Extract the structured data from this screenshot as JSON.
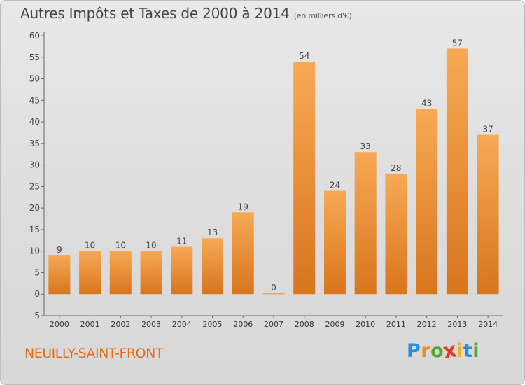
{
  "header": {
    "title": "Autres Impôts et Taxes de 2000 à 2014",
    "unit": "(en milliers d'€)"
  },
  "footer": {
    "commune": "NEUILLY-SAINT-FRONT",
    "logo_letters": [
      "P",
      "r",
      "o",
      "x",
      "i",
      "t",
      "i"
    ]
  },
  "colors": {
    "bar_light": "#f7a955",
    "bar_dark": "#d8751d",
    "commune_text": "#e46d1a",
    "logo_letters": [
      "#2f8dd6",
      "#f08a1c",
      "#58a531",
      "#e33c2e",
      "#f0b31c",
      "#2f8dd6",
      "#58a531"
    ]
  },
  "chart_data": {
    "type": "bar",
    "title": "Autres Impôts et Taxes de 2000 à 2014",
    "subtitle": "(en milliers d'€)",
    "xlabel": "",
    "ylabel": "",
    "categories": [
      "2000",
      "2001",
      "2002",
      "2003",
      "2004",
      "2005",
      "2006",
      "2007",
      "2008",
      "2009",
      "2010",
      "2011",
      "2012",
      "2013",
      "2014"
    ],
    "values": [
      9,
      10,
      10,
      10,
      11,
      13,
      19,
      0,
      54,
      24,
      33,
      28,
      43,
      57,
      37
    ],
    "ylim": [
      -5,
      60
    ],
    "yticks": [
      -5,
      0,
      5,
      10,
      15,
      20,
      25,
      30,
      35,
      40,
      45,
      50,
      55,
      60
    ],
    "grid": false,
    "data_labels": true
  }
}
